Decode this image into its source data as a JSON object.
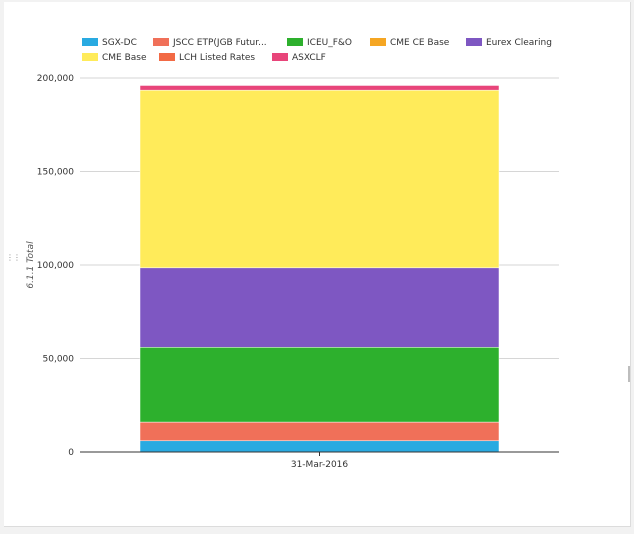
{
  "chart_data": {
    "type": "bar",
    "stacked": true,
    "categories": [
      "31-Mar-2016"
    ],
    "ylabel": "6.1.1 Total",
    "ylim": [
      0,
      200000
    ],
    "yticks": [
      "0",
      "50,000",
      "100,000",
      "150,000",
      "200,000"
    ],
    "grid": true,
    "legend_position": "top",
    "series": [
      {
        "name": "SGX-DC",
        "color": "#29aae1",
        "values": [
          6000
        ]
      },
      {
        "name": "JSCC ETP(JGB Futur...",
        "color": "#f07059",
        "values": [
          10000
        ]
      },
      {
        "name": "ICEU_F&O",
        "color": "#2db02d",
        "values": [
          40000
        ]
      },
      {
        "name": "CME CE Base",
        "color": "#f5a623",
        "values": [
          0
        ]
      },
      {
        "name": "Eurex Clearing",
        "color": "#7e57c2",
        "values": [
          42500
        ]
      },
      {
        "name": "CME Base",
        "color": "#ffeb5a",
        "values": [
          95000
        ]
      },
      {
        "name": "LCH Listed Rates",
        "color": "#f26a45",
        "values": [
          0
        ]
      },
      {
        "name": "ASXCLF",
        "color": "#e8457a",
        "values": [
          2500
        ]
      }
    ]
  }
}
